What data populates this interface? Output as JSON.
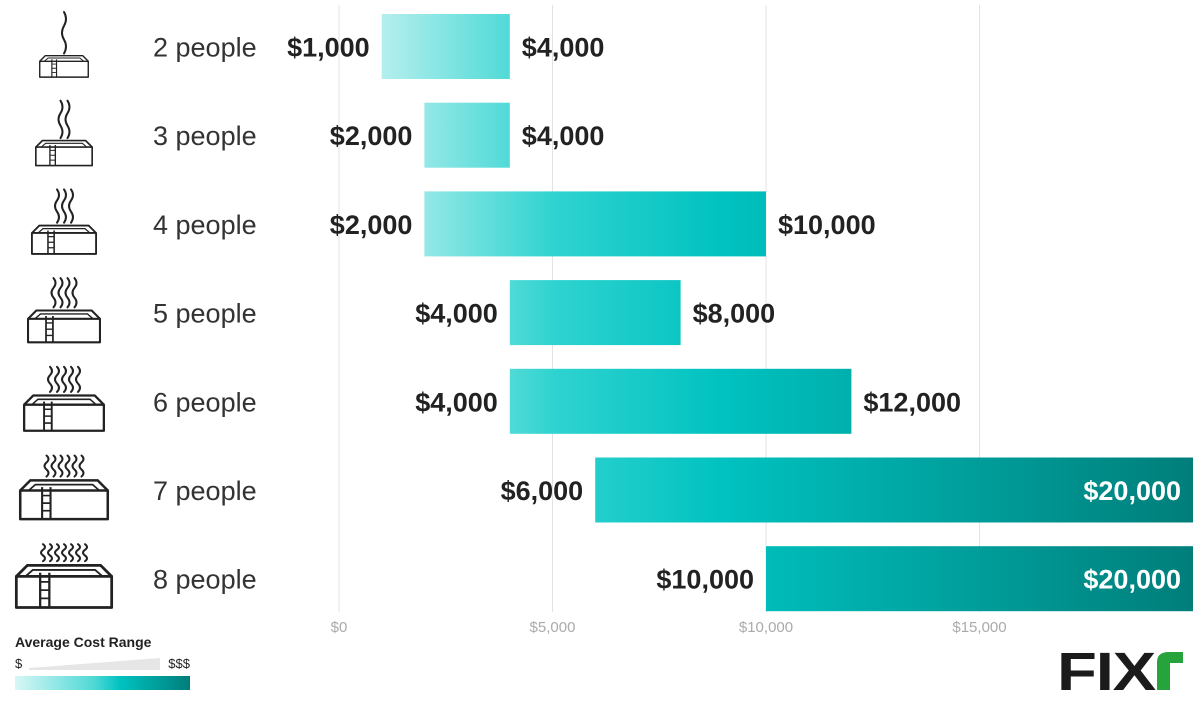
{
  "chart_data": {
    "type": "bar",
    "orientation": "horizontal-range",
    "categories": [
      "2 people",
      "3 people",
      "4 people",
      "5 people",
      "6 people",
      "7 people",
      "8 people"
    ],
    "series": [
      {
        "low": [
          1000,
          2000,
          2000,
          4000,
          4000,
          6000,
          10000
        ],
        "high": [
          4000,
          4000,
          10000,
          8000,
          12000,
          20000,
          20000
        ]
      }
    ],
    "low_labels": [
      "$1,000",
      "$2,000",
      "$2,000",
      "$4,000",
      "$4,000",
      "$6,000",
      "$10,000"
    ],
    "high_labels": [
      "$4,000",
      "$4,000",
      "$10,000",
      "$8,000",
      "$12,000",
      "$20,000",
      "$20,000"
    ],
    "x_ticks": [
      0,
      5000,
      10000,
      15000
    ],
    "x_tick_labels": [
      "$0",
      "$5,000",
      "$10,000",
      "$15,000"
    ],
    "xlim": [
      0,
      20000
    ],
    "grid": true,
    "colors": {
      "light": "#8fe6e4",
      "mid": "#00c2c0",
      "dark": "#007e7a",
      "text": "#222222",
      "tick": "#aaaaaa",
      "grid": "#e3e3e3"
    }
  },
  "legend": {
    "title": "Average Cost Range",
    "min_label": "$",
    "max_label": "$$$"
  },
  "logo": {
    "text": "FIXR",
    "text_color": "#1b1b1b",
    "accent_color": "#26a33d"
  }
}
